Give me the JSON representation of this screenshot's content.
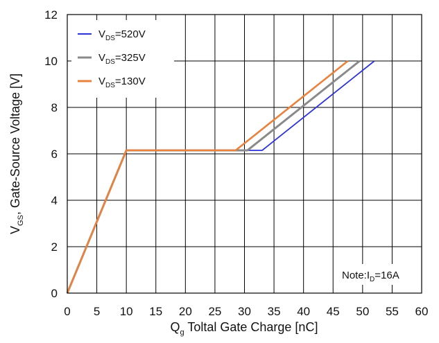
{
  "chart_data": {
    "type": "line",
    "xlim": [
      0,
      60
    ],
    "ylim": [
      0,
      12
    ],
    "x_ticks": [
      "0",
      "5",
      "10",
      "15",
      "20",
      "25",
      "30",
      "35",
      "40",
      "45",
      "50",
      "55",
      "60"
    ],
    "y_ticks": [
      "0",
      "2",
      "4",
      "6",
      "8",
      "10",
      "12"
    ],
    "grid": true,
    "legend_position": "top-left",
    "xlabel": {
      "q": "Q",
      "sub": "g",
      "rest": " Toltal Gate Charge [nC]"
    },
    "ylabel": {
      "v": "V",
      "sub": "GS",
      "rest": ", Gate-Source Voltage [V]"
    },
    "note": {
      "prefix": "Note:I",
      "sub": "D",
      "suffix": "=16A"
    },
    "series": [
      {
        "label_main": "V",
        "label_sub": "DS",
        "label_rest": "=520V",
        "color": "#2a32d8",
        "points": [
          [
            0,
            0
          ],
          [
            10,
            6.15
          ],
          [
            33,
            6.15
          ],
          [
            52,
            10
          ]
        ]
      },
      {
        "label_main": "V",
        "label_sub": "DS",
        "label_rest": "=325V",
        "color": "#8a8a8a",
        "points": [
          [
            0,
            0
          ],
          [
            10,
            6.15
          ],
          [
            30.5,
            6.15
          ],
          [
            49.5,
            10
          ]
        ]
      },
      {
        "label_main": "V",
        "label_sub": "DS",
        "label_rest": "=130V",
        "color": "#e9823c",
        "points": [
          [
            0,
            0
          ],
          [
            10,
            6.15
          ],
          [
            28.5,
            6.15
          ],
          [
            47.5,
            10
          ]
        ]
      }
    ]
  }
}
